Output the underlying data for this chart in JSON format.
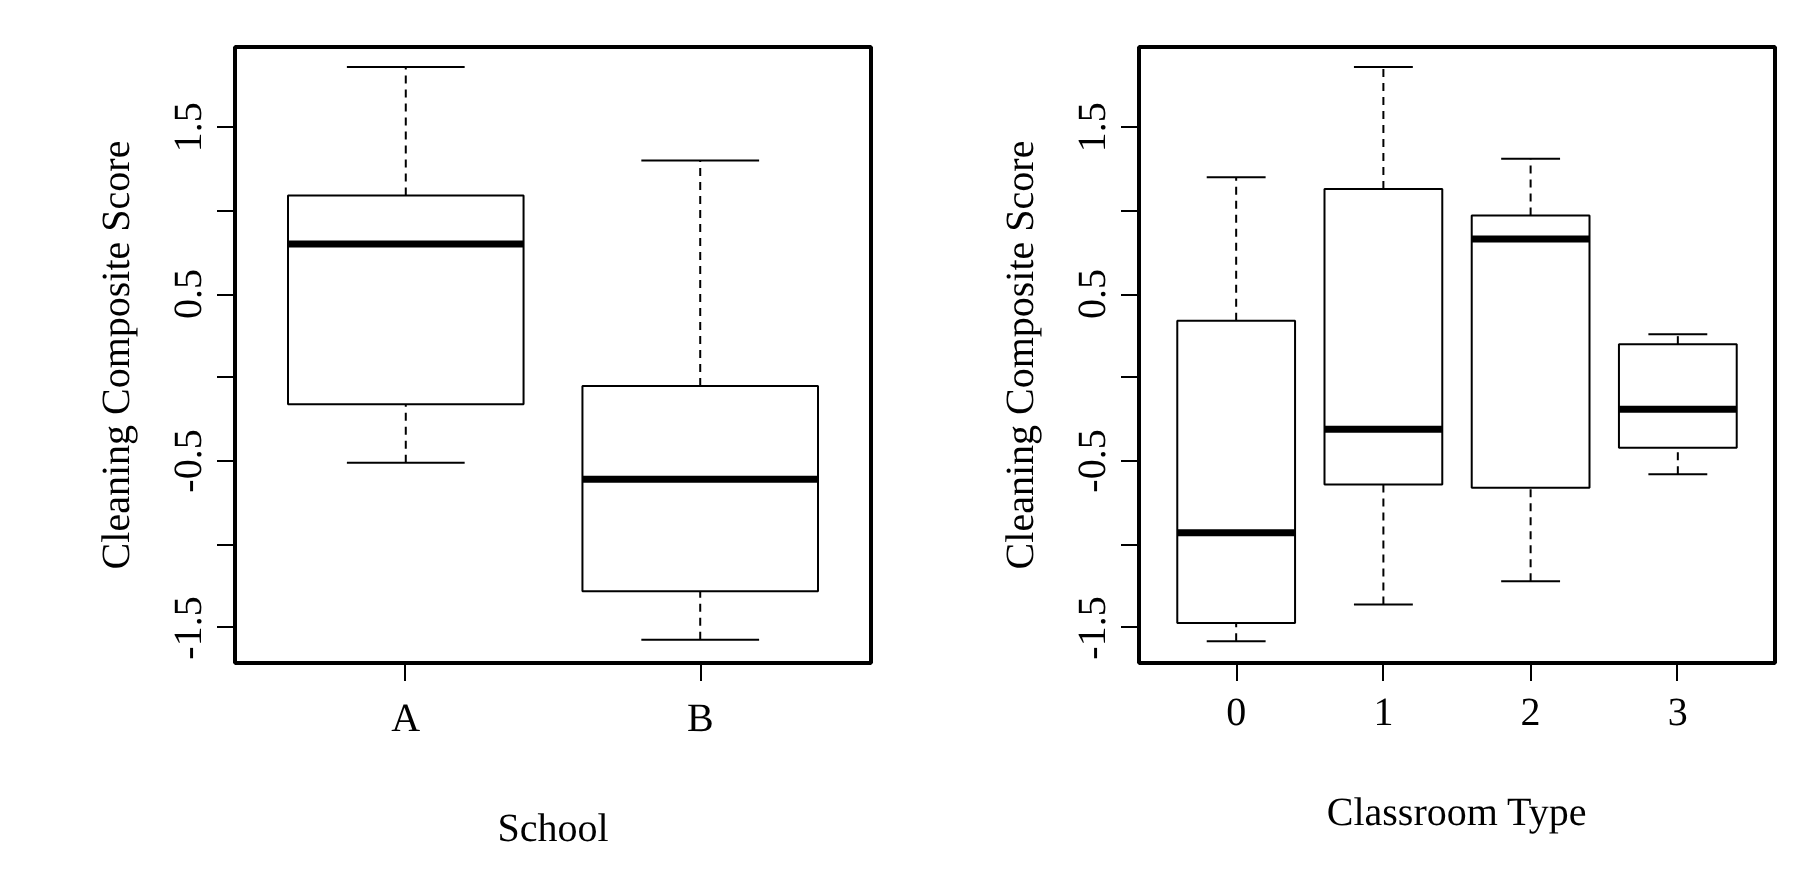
{
  "chart_data": [
    {
      "type": "box",
      "xlabel": "School",
      "ylabel": "Cleaning Composite Score",
      "categories": [
        "A",
        "B"
      ],
      "boxes": [
        {
          "low": -0.51,
          "q1": -0.16,
          "median": 0.8,
          "q3": 1.09,
          "high": 1.86
        },
        {
          "low": -1.57,
          "q1": -1.28,
          "median": -0.61,
          "q3": -0.05,
          "high": 1.3
        }
      ],
      "ylim": [
        -1.71,
        1.98
      ],
      "yticks": [
        -1.5,
        {
          "value": -1,
          "label": null
        },
        -0.5,
        {
          "value": 0,
          "label": null
        },
        0.5,
        {
          "value": 1,
          "label": null
        },
        1.5
      ],
      "grid": false
    },
    {
      "type": "box",
      "xlabel": "Classroom Type",
      "ylabel": "Cleaning Composite Score",
      "categories": [
        "0",
        "1",
        "2",
        "3"
      ],
      "boxes": [
        {
          "low": -1.58,
          "q1": -1.47,
          "median": -0.93,
          "q3": 0.34,
          "high": 1.2
        },
        {
          "low": -1.36,
          "q1": -0.64,
          "median": -0.31,
          "q3": 1.13,
          "high": 1.86
        },
        {
          "low": -1.22,
          "q1": -0.66,
          "median": 0.83,
          "q3": 0.97,
          "high": 1.31
        },
        {
          "low": -0.58,
          "q1": -0.42,
          "median": -0.19,
          "q3": 0.2,
          "high": 0.26
        }
      ],
      "ylim": [
        -1.71,
        1.98
      ],
      "yticks": [
        -1.5,
        {
          "value": -1,
          "label": null
        },
        -0.5,
        {
          "value": 0,
          "label": null
        },
        0.5,
        {
          "value": 1,
          "label": null
        },
        1.5
      ],
      "grid": false
    }
  ]
}
